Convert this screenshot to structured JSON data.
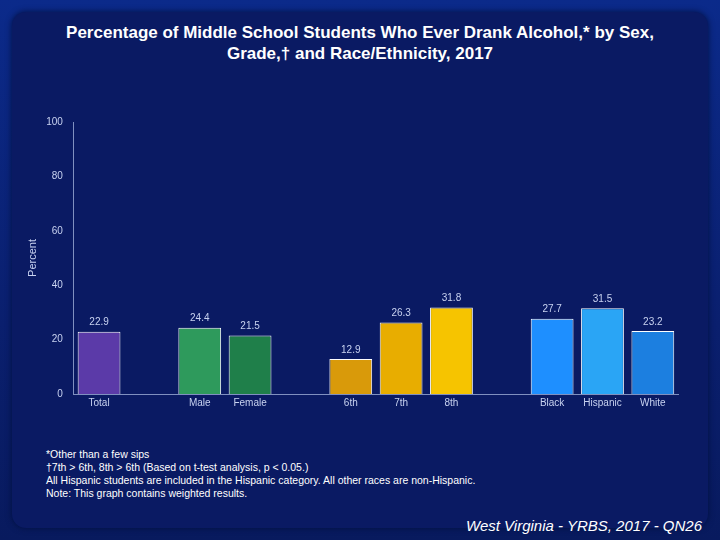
{
  "chart_data": {
    "type": "bar",
    "title": "Percentage of Middle School Students Who Ever Drank Alcohol,* by Sex, Grade,† and Race/Ethnicity, 2017",
    "y_label": "Percent",
    "categories": [
      "Total",
      null,
      "Male",
      "Female",
      null,
      "6th",
      "7th",
      "8th",
      null,
      "Black",
      "Hispanic",
      "White"
    ],
    "values": [
      22.9,
      null,
      24.4,
      21.5,
      null,
      12.9,
      26.3,
      31.8,
      null,
      27.7,
      31.5,
      23.2
    ],
    "colors": [
      "#5b3aa8",
      null,
      "#2e9a5c",
      "#1f7f4a",
      null,
      "#d99a0a",
      "#e8ad00",
      "#f6c400",
      null,
      "#1e8fff",
      "#2aa5f5",
      "#1c7fe0"
    ],
    "ylim": [
      0,
      100
    ],
    "yticks": [
      0,
      20,
      40,
      60,
      80,
      100
    ],
    "grid": false,
    "data_labels": true,
    "annotations": [
      "*Other than a few sips",
      "†7th > 6th, 8th > 6th (Based on t-test analysis, p < 0.05.)",
      "All Hispanic students are included in the Hispanic category.  All other races are non-Hispanic.",
      "Note: This graph contains weighted results."
    ],
    "source": "West Virginia - YRBS, 2017 - QN26"
  }
}
